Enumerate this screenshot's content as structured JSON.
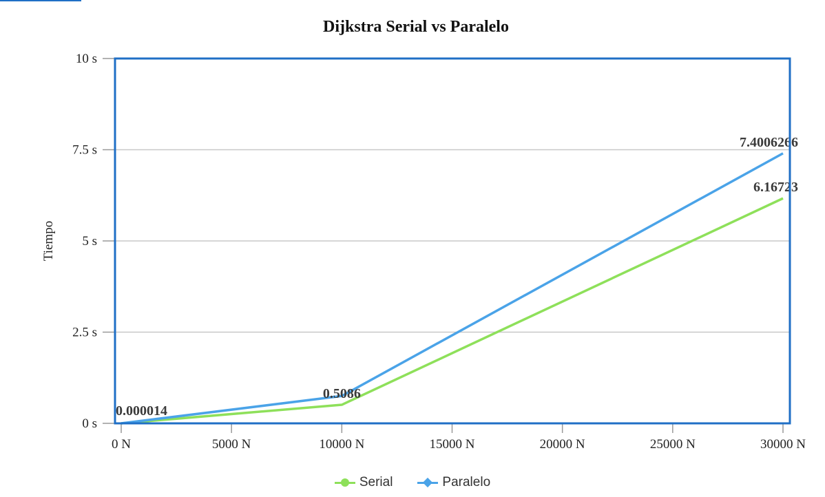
{
  "chart_data": {
    "type": "line",
    "title": "Dijkstra Serial vs Paralelo",
    "xlabel": "",
    "ylabel": "Tiempo",
    "x": [
      0,
      10000,
      30000
    ],
    "xlim": [
      0,
      30000
    ],
    "ylim": [
      0,
      10
    ],
    "xticks": [
      0,
      5000,
      10000,
      15000,
      20000,
      25000,
      30000
    ],
    "xtick_labels": [
      "0 N",
      "5000 N",
      "10000 N",
      "15000 N",
      "20000 N",
      "25000 N",
      "30000 N"
    ],
    "yticks": [
      0,
      2.5,
      5,
      7.5,
      10
    ],
    "ytick_labels": [
      "0 s",
      "2.5 s",
      "5 s",
      "7.5 s",
      "10 s"
    ],
    "grid": true,
    "legend_position": "bottom",
    "series": [
      {
        "name": "Serial",
        "color": "#8ee05a",
        "marker": "circle",
        "values": [
          1.4e-05,
          0.5086,
          6.16723
        ]
      },
      {
        "name": "Paralelo",
        "color": "#4aa3e8",
        "marker": "diamond",
        "values": [
          1.4e-05,
          0.75,
          7.4006266
        ]
      }
    ],
    "data_labels": [
      {
        "text": "0.000014",
        "x": 0,
        "y": 1.4e-05
      },
      {
        "text": "0.5086",
        "x": 10000,
        "y": 0.5086
      },
      {
        "text": "6.16723",
        "x": 30000,
        "y": 6.16723
      },
      {
        "text": "7.4006266",
        "x": 30000,
        "y": 7.4006266
      }
    ],
    "frame_color": "#1f6fc6"
  }
}
